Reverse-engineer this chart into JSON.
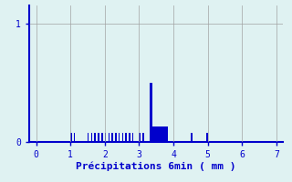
{
  "xlabel": "Précipitations 6min ( mm )",
  "background_color": "#dff2f2",
  "bar_color": "#0000cc",
  "grid_color": "#a0a0a0",
  "xlim": [
    -0.2,
    7.2
  ],
  "ylim": [
    0,
    1.15
  ],
  "yticks": [
    0,
    1
  ],
  "xticks": [
    0,
    1,
    2,
    3,
    4,
    5,
    6,
    7
  ],
  "bar_data": [
    [
      1.0,
      0.04,
      0.08
    ],
    [
      1.1,
      0.04,
      0.08
    ],
    [
      1.5,
      0.04,
      0.08
    ],
    [
      1.6,
      0.04,
      0.08
    ],
    [
      1.7,
      0.04,
      0.08
    ],
    [
      1.8,
      0.04,
      0.08
    ],
    [
      1.9,
      0.04,
      0.08
    ],
    [
      2.0,
      0.04,
      0.08
    ],
    [
      2.1,
      0.04,
      0.08
    ],
    [
      2.2,
      0.04,
      0.08
    ],
    [
      2.3,
      0.04,
      0.08
    ],
    [
      2.4,
      0.04,
      0.08
    ],
    [
      2.5,
      0.04,
      0.08
    ],
    [
      2.6,
      0.04,
      0.08
    ],
    [
      2.7,
      0.04,
      0.08
    ],
    [
      2.8,
      0.04,
      0.08
    ],
    [
      3.0,
      0.04,
      0.08
    ],
    [
      3.1,
      0.04,
      0.08
    ],
    [
      3.3,
      0.08,
      0.5
    ],
    [
      3.4,
      0.45,
      0.13
    ],
    [
      4.5,
      0.06,
      0.08
    ],
    [
      4.95,
      0.06,
      0.08
    ]
  ],
  "tick_fontsize": 7,
  "xlabel_fontsize": 8
}
